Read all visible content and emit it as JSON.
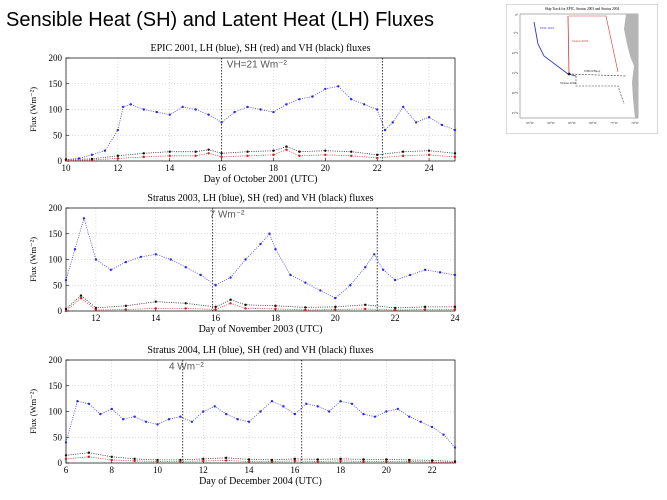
{
  "slide": {
    "title": "Sensible Heat (SH) and Latent Heat (LH) Fluxes"
  },
  "inset_map": {
    "title": "Ship Track for EPIC, Stratus 2003 and Stratus 2004",
    "labels": [
      "EPIC 2001",
      "Stratus 2003",
      "WHOI Buoy",
      "Stratus 2004"
    ],
    "lat_labels": [
      "0°",
      "5°S",
      "10°S",
      "15°S",
      "20°S",
      "25°S"
    ],
    "lon_labels": [
      "95°W",
      "90°W",
      "85°W",
      "80°W",
      "75°W",
      "70°W"
    ],
    "colors": {
      "epic": "#3333cc",
      "stratus2003": "#dd3333",
      "stratus2004": "#333333",
      "land": "#b5b5b5"
    }
  },
  "colors": {
    "lh": "#2a2ae6",
    "sh": "#e01818",
    "vh": "#111111",
    "marker": "#222222"
  },
  "chart_data": [
    {
      "type": "scatter",
      "title": "EPIC 2001, LH (blue), SH (red) and VH (black) fluxes",
      "xlabel": "Day of October 2001 (UTC)",
      "ylabel": "Flux (Wm⁻²)",
      "xlim": [
        10,
        25
      ],
      "ylim": [
        0,
        200
      ],
      "xticks": [
        10,
        12,
        14,
        16,
        18,
        20,
        22,
        24
      ],
      "yticks": [
        0,
        50,
        100,
        150,
        200
      ],
      "annotation": {
        "text": "VH=21 Wm⁻²",
        "x": 16.2,
        "y": 182
      },
      "markers": [
        16,
        22.2
      ],
      "series": [
        {
          "name": "LH",
          "x": [
            10,
            10.5,
            11,
            11.5,
            12,
            12.2,
            12.5,
            13,
            13.5,
            14,
            14.5,
            15,
            15.5,
            16,
            16.5,
            17,
            17.5,
            18,
            18.5,
            19,
            19.5,
            20,
            20.5,
            21,
            21.5,
            22,
            22.3,
            22.6,
            23,
            23.5,
            24,
            24.5,
            25
          ],
          "y": [
            3,
            5,
            12,
            20,
            60,
            105,
            110,
            100,
            95,
            90,
            105,
            100,
            90,
            75,
            95,
            105,
            100,
            95,
            110,
            120,
            125,
            140,
            145,
            120,
            110,
            100,
            60,
            75,
            105,
            75,
            85,
            70,
            60
          ]
        },
        {
          "name": "SH",
          "x": [
            10,
            11,
            12,
            13,
            14,
            15,
            15.5,
            16,
            17,
            18,
            18.5,
            19,
            20,
            21,
            22,
            23,
            24,
            25
          ],
          "y": [
            1,
            2,
            5,
            8,
            10,
            10,
            15,
            8,
            10,
            12,
            22,
            10,
            12,
            10,
            6,
            10,
            12,
            8
          ]
        },
        {
          "name": "VH",
          "x": [
            10,
            11,
            12,
            13,
            14,
            15,
            15.5,
            16,
            17,
            18,
            18.5,
            19,
            20,
            21,
            22,
            23,
            24,
            25
          ],
          "y": [
            3,
            4,
            10,
            15,
            18,
            18,
            22,
            15,
            18,
            20,
            28,
            18,
            20,
            18,
            12,
            18,
            20,
            15
          ]
        }
      ]
    },
    {
      "type": "scatter",
      "title": "Stratus 2003, LH (blue), SH (red) and VH (black) fluxes",
      "xlabel": "Day of November 2003 (UTC)",
      "ylabel": "Flux (Wm⁻²)",
      "xlim": [
        11,
        24
      ],
      "ylim": [
        0,
        200
      ],
      "xticks": [
        12,
        14,
        16,
        18,
        20,
        22,
        24
      ],
      "yticks": [
        0,
        50,
        100,
        150,
        200
      ],
      "annotation": {
        "text": "7 Wm⁻²",
        "x": 15.8,
        "y": 182
      },
      "markers": [
        15.9,
        21.4
      ],
      "series": [
        {
          "name": "LH",
          "x": [
            11,
            11.3,
            11.6,
            12,
            12.5,
            13,
            13.5,
            14,
            14.5,
            15,
            15.5,
            16,
            16.5,
            17,
            17.5,
            17.8,
            18,
            18.5,
            19,
            19.5,
            20,
            20.5,
            21,
            21.3,
            21.6,
            22,
            22.5,
            23,
            23.5,
            24
          ],
          "y": [
            60,
            120,
            180,
            100,
            80,
            95,
            105,
            110,
            100,
            85,
            70,
            50,
            65,
            100,
            130,
            150,
            120,
            70,
            55,
            40,
            25,
            50,
            85,
            110,
            80,
            60,
            70,
            80,
            75,
            70
          ]
        },
        {
          "name": "SH",
          "x": [
            11,
            11.5,
            12,
            13,
            14,
            15,
            16,
            16.5,
            17,
            18,
            19,
            20,
            21,
            22,
            23,
            24
          ],
          "y": [
            0,
            25,
            2,
            3,
            5,
            5,
            3,
            15,
            5,
            4,
            2,
            3,
            4,
            2,
            3,
            3
          ]
        },
        {
          "name": "VH",
          "x": [
            11,
            11.5,
            12,
            13,
            14,
            15,
            16,
            16.5,
            17,
            18,
            19,
            20,
            21,
            22,
            23,
            24
          ],
          "y": [
            4,
            30,
            6,
            10,
            18,
            15,
            8,
            22,
            12,
            10,
            7,
            8,
            12,
            6,
            8,
            8
          ]
        }
      ]
    },
    {
      "type": "scatter",
      "title": "Stratus 2004, LH (blue), SH (red) and VH (black) fluxes",
      "xlabel": "Day of December 2004 (UTC)",
      "ylabel": "Flux (Wm⁻²)",
      "xlim": [
        6,
        23
      ],
      "ylim": [
        0,
        200
      ],
      "xticks": [
        6,
        8,
        10,
        12,
        14,
        16,
        18,
        20,
        22
      ],
      "yticks": [
        0,
        50,
        100,
        150,
        200
      ],
      "annotation": {
        "text": "4 Wm⁻²",
        "x": 10.5,
        "y": 182
      },
      "markers": [
        11.1,
        16.3
      ],
      "series": [
        {
          "name": "LH",
          "x": [
            6,
            6.5,
            7,
            7.5,
            8,
            8.5,
            9,
            9.5,
            10,
            10.5,
            11,
            11.5,
            12,
            12.5,
            13,
            13.5,
            14,
            14.5,
            15,
            15.5,
            16,
            16.5,
            17,
            17.5,
            18,
            18.5,
            19,
            19.5,
            20,
            20.5,
            21,
            21.5,
            22,
            22.5,
            23
          ],
          "y": [
            40,
            120,
            115,
            95,
            105,
            85,
            90,
            80,
            75,
            85,
            90,
            80,
            100,
            110,
            95,
            85,
            80,
            100,
            120,
            110,
            95,
            115,
            110,
            100,
            120,
            115,
            95,
            90,
            100,
            105,
            90,
            80,
            70,
            55,
            30
          ]
        },
        {
          "name": "SH",
          "x": [
            6,
            7,
            8,
            9,
            10,
            11,
            12,
            13,
            14,
            15,
            16,
            17,
            18,
            19,
            20,
            21,
            22,
            23
          ],
          "y": [
            8,
            12,
            6,
            4,
            3,
            3,
            4,
            5,
            3,
            3,
            4,
            3,
            4,
            3,
            3,
            3,
            2,
            1
          ]
        },
        {
          "name": "VH",
          "x": [
            6,
            7,
            8,
            9,
            10,
            11,
            12,
            13,
            14,
            15,
            16,
            17,
            18,
            19,
            20,
            21,
            22,
            23
          ],
          "y": [
            15,
            20,
            12,
            8,
            6,
            6,
            8,
            10,
            7,
            6,
            8,
            7,
            8,
            7,
            7,
            6,
            5,
            3
          ]
        }
      ]
    }
  ]
}
